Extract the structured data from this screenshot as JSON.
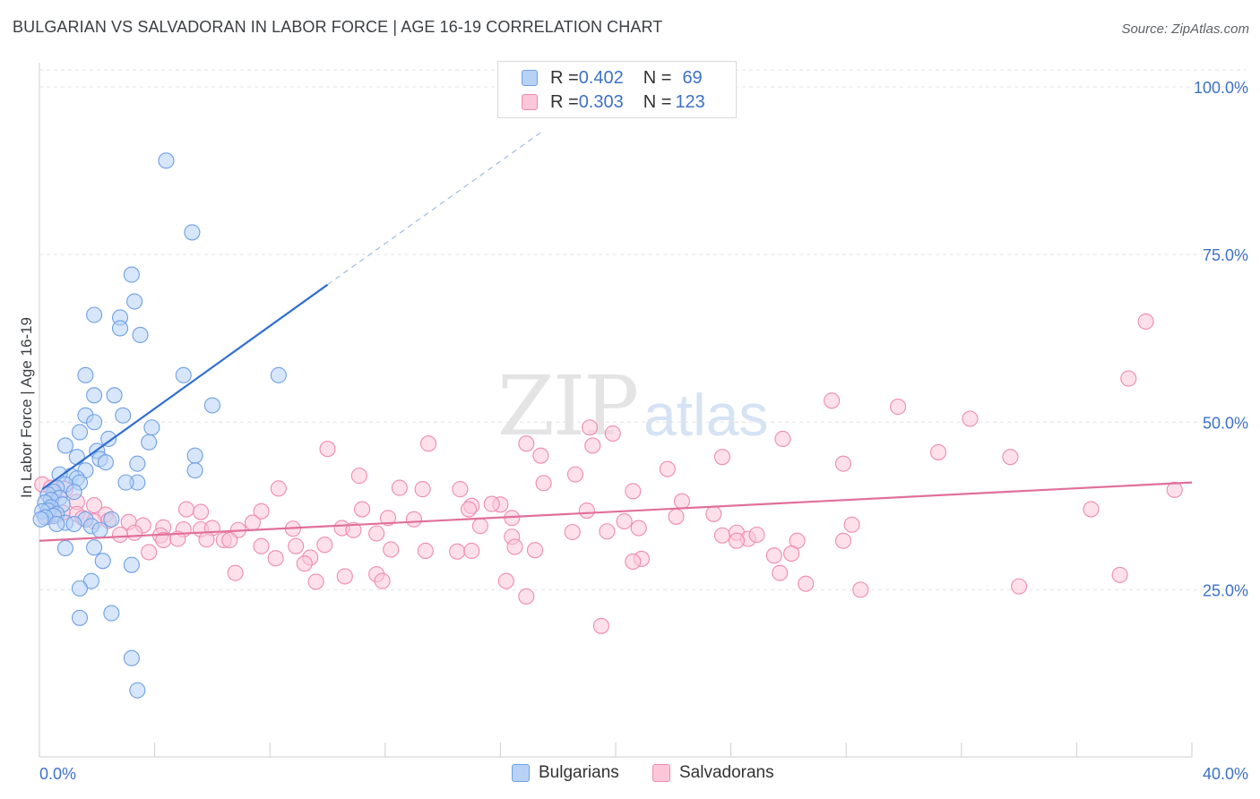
{
  "header": {
    "title": "BULGARIAN VS SALVADORAN IN LABOR FORCE | AGE 16-19 CORRELATION CHART",
    "source": "Source: ZipAtlas.com"
  },
  "watermark": {
    "zip": "ZIP",
    "atlas": "atlas"
  },
  "legend": {
    "rows": [
      {
        "r_label": "R = ",
        "r_value": "0.402",
        "n_label": "N = ",
        "n_value": "69"
      },
      {
        "r_label": "R = ",
        "r_value": "0.303",
        "n_label": "N = ",
        "n_value": "123"
      }
    ]
  },
  "bottom_legend": {
    "series1": "Bulgarians",
    "series2": "Salvadorans"
  },
  "colors": {
    "blue_fill": "#b7d2f5",
    "blue_stroke": "#6fa0e6",
    "blue_line": "#2f6fd0",
    "pink_fill": "#fbc7d8",
    "pink_stroke": "#f08ab0",
    "pink_line": "#e0709a",
    "grid": "#e3e3e3",
    "tick_text": "#3d72c8"
  },
  "chart_data": {
    "type": "scatter",
    "title": "BULGARIAN VS SALVADORAN IN LABOR FORCE | AGE 16-19 CORRELATION CHART",
    "xlabel": "",
    "ylabel": "In Labor Force | Age 16-19",
    "xlim": [
      0,
      40
    ],
    "ylim": [
      0,
      105
    ],
    "x_tick_labels": [
      "0.0%",
      "40.0%"
    ],
    "y_ticks": [
      25,
      50,
      75,
      100
    ],
    "y_tick_labels": [
      "25.0%",
      "50.0%",
      "75.0%",
      "100.0%"
    ],
    "series": [
      {
        "name": "Bulgarians",
        "r": 0.402,
        "n": 69,
        "trend": {
          "x0": 0.1,
          "y0": 40,
          "x1": 10.0,
          "y1": 70.5,
          "dash_to_x": 17.5,
          "dash_to_y": 93.5
        },
        "points": [
          [
            4.4,
            89
          ],
          [
            5.3,
            78.3
          ],
          [
            3.2,
            72
          ],
          [
            3.3,
            68
          ],
          [
            1.9,
            66
          ],
          [
            2.8,
            65.6
          ],
          [
            2.8,
            64
          ],
          [
            3.5,
            63
          ],
          [
            1.6,
            57
          ],
          [
            5.0,
            57
          ],
          [
            8.3,
            57
          ],
          [
            2.6,
            54
          ],
          [
            1.9,
            54
          ],
          [
            6.0,
            52.5
          ],
          [
            1.6,
            51
          ],
          [
            2.9,
            51
          ],
          [
            3.9,
            49.2
          ],
          [
            1.9,
            50
          ],
          [
            1.4,
            48.5
          ],
          [
            2.4,
            47.5
          ],
          [
            3.8,
            47
          ],
          [
            0.9,
            46.5
          ],
          [
            2.0,
            45.7
          ],
          [
            1.3,
            44.8
          ],
          [
            5.4,
            45
          ],
          [
            2.1,
            44.5
          ],
          [
            2.3,
            44
          ],
          [
            3.4,
            43.8
          ],
          [
            5.4,
            42.8
          ],
          [
            1.6,
            42.8
          ],
          [
            1.1,
            42
          ],
          [
            0.7,
            42.2
          ],
          [
            1.3,
            41.6
          ],
          [
            1.4,
            41
          ],
          [
            0.9,
            40.7
          ],
          [
            3.4,
            41
          ],
          [
            3.0,
            41
          ],
          [
            0.6,
            40.2
          ],
          [
            0.5,
            39.6
          ],
          [
            1.2,
            39.6
          ],
          [
            0.3,
            39.2
          ],
          [
            0.7,
            38.7
          ],
          [
            0.4,
            38.4
          ],
          [
            0.2,
            38
          ],
          [
            0.8,
            37.7
          ],
          [
            0.4,
            37.3
          ],
          [
            0.3,
            36.8
          ],
          [
            0.1,
            36.7
          ],
          [
            0.6,
            36.3
          ],
          [
            0.5,
            36
          ],
          [
            0.2,
            35.8
          ],
          [
            0.05,
            35.5
          ],
          [
            1.6,
            35.5
          ],
          [
            2.5,
            35.5
          ],
          [
            0.9,
            35
          ],
          [
            0.6,
            34.8
          ],
          [
            1.2,
            34.8
          ],
          [
            1.8,
            34.5
          ],
          [
            2.1,
            33.9
          ],
          [
            1.9,
            31.3
          ],
          [
            0.9,
            31.2
          ],
          [
            2.2,
            29.3
          ],
          [
            3.2,
            28.7
          ],
          [
            1.8,
            26.3
          ],
          [
            1.4,
            25.2
          ],
          [
            2.5,
            21.5
          ],
          [
            1.4,
            20.8
          ],
          [
            3.2,
            14.8
          ],
          [
            3.4,
            10
          ]
        ]
      },
      {
        "name": "Salvadorans",
        "r": 0.303,
        "n": 123,
        "trend": {
          "x0": 0.0,
          "y0": 32.3,
          "x1": 40.0,
          "y1": 41.0
        },
        "points": [
          [
            38.4,
            65
          ],
          [
            37.8,
            56.5
          ],
          [
            27.5,
            53.2
          ],
          [
            29.8,
            52.3
          ],
          [
            32.3,
            50.5
          ],
          [
            19.1,
            49.2
          ],
          [
            19.9,
            48.3
          ],
          [
            25.8,
            47.5
          ],
          [
            13.5,
            46.8
          ],
          [
            16.9,
            46.8
          ],
          [
            19.2,
            46.5
          ],
          [
            10.0,
            46.0
          ],
          [
            31.2,
            45.5
          ],
          [
            17.4,
            45.0
          ],
          [
            23.7,
            44.8
          ],
          [
            33.7,
            44.8
          ],
          [
            27.9,
            43.8
          ],
          [
            21.8,
            43.0
          ],
          [
            11.1,
            42.0
          ],
          [
            18.6,
            42.2
          ],
          [
            17.5,
            40.9
          ],
          [
            8.3,
            40.1
          ],
          [
            12.5,
            40.2
          ],
          [
            13.3,
            40.0
          ],
          [
            14.6,
            40.0
          ],
          [
            20.6,
            39.7
          ],
          [
            0.1,
            40.7
          ],
          [
            0.4,
            40.2
          ],
          [
            0.9,
            40
          ],
          [
            0.5,
            39.2
          ],
          [
            1.3,
            38.1
          ],
          [
            1.9,
            37.6
          ],
          [
            22.3,
            38.2
          ],
          [
            16.0,
            37.7
          ],
          [
            15.7,
            37.8
          ],
          [
            15.0,
            37.5
          ],
          [
            36.5,
            37.0
          ],
          [
            39.4,
            39.9
          ],
          [
            19.0,
            36.8
          ],
          [
            11.2,
            37.0
          ],
          [
            14.9,
            37.0
          ],
          [
            5.1,
            37.0
          ],
          [
            5.6,
            36.6
          ],
          [
            7.7,
            36.7
          ],
          [
            23.4,
            36.3
          ],
          [
            22.1,
            35.9
          ],
          [
            20.3,
            35.2
          ],
          [
            12.1,
            35.7
          ],
          [
            13.0,
            35.5
          ],
          [
            16.4,
            35.7
          ],
          [
            2.3,
            36.2
          ],
          [
            1.3,
            36.3
          ],
          [
            0.8,
            36.5
          ],
          [
            0.6,
            36.2
          ],
          [
            0.3,
            35.9
          ],
          [
            1.5,
            35.7
          ],
          [
            1.9,
            35.2
          ],
          [
            2.4,
            35.3
          ],
          [
            3.1,
            35.1
          ],
          [
            7.4,
            35.0
          ],
          [
            3.6,
            34.6
          ],
          [
            4.3,
            34.3
          ],
          [
            5.0,
            34.0
          ],
          [
            5.6,
            34.0
          ],
          [
            6.0,
            34.2
          ],
          [
            6.9,
            33.9
          ],
          [
            8.8,
            34.1
          ],
          [
            10.5,
            34.2
          ],
          [
            10.9,
            33.9
          ],
          [
            11.7,
            33.4
          ],
          [
            15.3,
            34.5
          ],
          [
            16.4,
            32.9
          ],
          [
            18.5,
            33.6
          ],
          [
            19.7,
            33.7
          ],
          [
            20.8,
            34.2
          ],
          [
            23.7,
            33.1
          ],
          [
            24.2,
            33.5
          ],
          [
            28.2,
            34.7
          ],
          [
            24.6,
            32.6
          ],
          [
            24.9,
            33.2
          ],
          [
            26.3,
            32.3
          ],
          [
            27.9,
            32.3
          ],
          [
            3.3,
            33.5
          ],
          [
            2.8,
            33.2
          ],
          [
            4.2,
            33.1
          ],
          [
            4.3,
            32.4
          ],
          [
            4.8,
            32.6
          ],
          [
            5.8,
            32.5
          ],
          [
            6.4,
            32.4
          ],
          [
            6.6,
            32.4
          ],
          [
            7.7,
            31.5
          ],
          [
            8.9,
            31.5
          ],
          [
            9.9,
            31.7
          ],
          [
            12.2,
            31.0
          ],
          [
            13.4,
            30.8
          ],
          [
            14.5,
            30.7
          ],
          [
            15.0,
            30.8
          ],
          [
            16.5,
            31.4
          ],
          [
            17.2,
            30.9
          ],
          [
            24.2,
            32.3
          ],
          [
            25.5,
            30.1
          ],
          [
            26.1,
            30.4
          ],
          [
            8.2,
            29.7
          ],
          [
            9.4,
            29.8
          ],
          [
            20.9,
            29.6
          ],
          [
            20.6,
            29.2
          ],
          [
            3.8,
            30.6
          ],
          [
            6.8,
            27.5
          ],
          [
            9.2,
            28.9
          ],
          [
            11.7,
            27.3
          ],
          [
            10.6,
            27.0
          ],
          [
            25.7,
            27.5
          ],
          [
            9.6,
            26.2
          ],
          [
            11.9,
            26.3
          ],
          [
            16.2,
            26.3
          ],
          [
            26.6,
            25.9
          ],
          [
            28.5,
            25.0
          ],
          [
            34.0,
            25.5
          ],
          [
            37.5,
            27.2
          ],
          [
            16.9,
            24.0
          ],
          [
            19.5,
            19.6
          ]
        ]
      }
    ]
  }
}
